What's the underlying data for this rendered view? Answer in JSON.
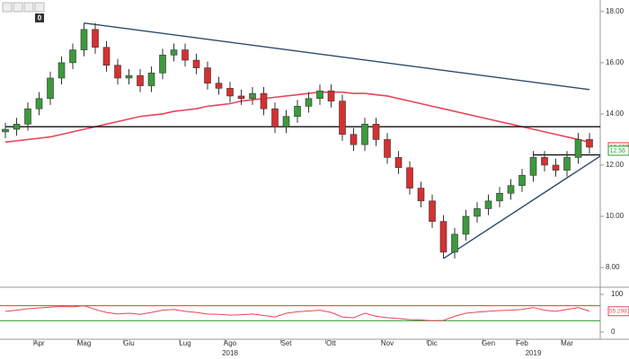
{
  "chart_data": {
    "type": "candlestick",
    "toolbar_count": "0",
    "categories": [
      null,
      null,
      null,
      "Apr",
      null,
      null,
      null,
      "Mag",
      null,
      null,
      null,
      "Giu",
      null,
      null,
      null,
      null,
      "Lug",
      null,
      null,
      null,
      "Ago",
      null,
      null,
      null,
      null,
      "Set",
      null,
      null,
      null,
      "Ott",
      null,
      null,
      null,
      null,
      "Nov",
      null,
      null,
      null,
      "Dic",
      null,
      null,
      null,
      null,
      "Gen",
      null,
      null,
      "Feb",
      null,
      null,
      null,
      "Mar",
      null,
      null
    ],
    "years": [
      null,
      null,
      null,
      null,
      null,
      null,
      null,
      null,
      null,
      null,
      null,
      null,
      null,
      null,
      null,
      null,
      null,
      null,
      null,
      null,
      "2018",
      null,
      null,
      null,
      null,
      null,
      null,
      null,
      null,
      null,
      null,
      null,
      null,
      null,
      null,
      null,
      null,
      null,
      null,
      null,
      null,
      null,
      null,
      null,
      null,
      null,
      null,
      "2019",
      null,
      null,
      null,
      null,
      null
    ],
    "open": [
      13.3,
      13.4,
      13.6,
      14.2,
      14.6,
      15.4,
      16.0,
      16.5,
      17.3,
      16.6,
      15.9,
      15.4,
      15.5,
      15.1,
      15.6,
      16.3,
      16.5,
      16.1,
      15.8,
      15.2,
      15.0,
      14.7,
      14.6,
      14.8,
      14.2,
      13.5,
      13.9,
      14.3,
      14.6,
      14.9,
      14.5,
      13.2,
      12.8,
      13.6,
      13.0,
      12.3,
      11.9,
      11.1,
      10.6,
      9.8,
      8.6,
      9.3,
      10.0,
      10.3,
      10.6,
      10.9,
      11.2,
      11.6,
      12.3,
      12.0,
      11.8,
      12.3,
      13.0
    ],
    "high": [
      13.65,
      13.85,
      14.45,
      14.85,
      15.65,
      16.25,
      16.75,
      17.55,
      17.55,
      16.85,
      16.15,
      15.75,
      15.75,
      15.85,
      16.55,
      16.75,
      16.75,
      16.35,
      16.05,
      15.45,
      15.25,
      14.95,
      15.05,
      15.05,
      14.45,
      14.15,
      14.55,
      14.85,
      15.15,
      15.15,
      14.75,
      13.45,
      13.85,
      13.85,
      13.25,
      12.55,
      12.15,
      11.35,
      10.85,
      10.05,
      9.55,
      10.25,
      10.55,
      10.85,
      11.15,
      11.45,
      11.85,
      12.55,
      12.55,
      12.25,
      12.55,
      13.25,
      13.25
    ],
    "low": [
      13.05,
      13.15,
      13.35,
      13.95,
      14.35,
      15.15,
      15.75,
      16.25,
      16.35,
      15.65,
      15.15,
      15.15,
      14.85,
      14.85,
      15.35,
      16.05,
      15.85,
      15.55,
      14.95,
      14.75,
      14.45,
      14.35,
      14.35,
      13.95,
      13.25,
      13.25,
      13.65,
      14.05,
      14.35,
      14.25,
      12.95,
      12.55,
      12.55,
      12.75,
      12.05,
      11.65,
      10.85,
      10.35,
      9.55,
      8.35,
      8.35,
      9.05,
      9.75,
      10.05,
      10.35,
      10.65,
      10.95,
      11.35,
      11.75,
      11.55,
      11.55,
      12.05,
      12.45
    ],
    "close": [
      13.4,
      13.6,
      14.2,
      14.6,
      15.4,
      16.0,
      16.5,
      17.3,
      16.6,
      15.9,
      15.4,
      15.5,
      15.1,
      15.6,
      16.3,
      16.5,
      16.1,
      15.8,
      15.2,
      15.0,
      14.7,
      14.6,
      14.8,
      14.2,
      13.5,
      13.9,
      14.3,
      14.6,
      14.9,
      14.5,
      13.2,
      12.8,
      13.6,
      13.0,
      12.3,
      11.9,
      11.1,
      10.6,
      9.8,
      8.6,
      9.3,
      10.0,
      10.3,
      10.6,
      10.9,
      11.2,
      11.6,
      12.3,
      12.0,
      11.8,
      12.3,
      13.0,
      12.7
    ],
    "up_color": "#3c9a3c",
    "down_color": "#d63031",
    "moving_average": {
      "color": "#e8455a",
      "values": [
        12.9,
        12.95,
        13.0,
        13.05,
        13.1,
        13.2,
        13.3,
        13.4,
        13.5,
        13.6,
        13.7,
        13.8,
        13.9,
        13.95,
        14.0,
        14.1,
        14.15,
        14.2,
        14.3,
        14.35,
        14.4,
        14.5,
        14.55,
        14.6,
        14.65,
        14.7,
        14.75,
        14.8,
        14.85,
        14.85,
        14.85,
        14.8,
        14.8,
        14.75,
        14.7,
        14.6,
        14.5,
        14.4,
        14.3,
        14.2,
        14.1,
        14.0,
        13.9,
        13.8,
        13.7,
        13.6,
        13.5,
        13.4,
        13.3,
        13.2,
        13.1,
        13.0,
        12.9
      ]
    },
    "lines": [
      {
        "color": "#2c4a6b",
        "x": [
          7,
          52
        ],
        "y": [
          17.55,
          14.95
        ]
      },
      {
        "color": "#111111",
        "x": [
          0,
          53
        ],
        "y": [
          13.5,
          13.5
        ]
      },
      {
        "color": "#2c4a6b",
        "x": [
          39,
          53
        ],
        "y": [
          8.35,
          12.35
        ]
      },
      {
        "color": "#111111",
        "x": [
          47,
          53
        ],
        "y": [
          12.4,
          12.4
        ]
      }
    ],
    "ylim": [
      7.3,
      18.45
    ],
    "yticks": [
      {
        "value": 8,
        "label": "8.00"
      },
      {
        "value": 10,
        "label": "10.00"
      },
      {
        "value": 12,
        "label": "12.00"
      },
      {
        "value": 14,
        "label": "14.00"
      },
      {
        "value": 16,
        "label": "16.00"
      },
      {
        "value": 18,
        "label": "18.00"
      }
    ],
    "price_labels": [
      {
        "value": 12.699,
        "label": "12.699",
        "color": "#e53935"
      },
      {
        "value": 12.56,
        "label": "12.56",
        "color": "#2e9e2e"
      }
    ],
    "rsi": {
      "color": "#e8455a",
      "values": [
        55,
        58,
        62,
        64,
        66,
        68,
        67,
        70,
        60,
        52,
        48,
        50,
        47,
        52,
        58,
        60,
        55,
        52,
        48,
        47,
        45,
        46,
        48,
        44,
        40,
        50,
        54,
        56,
        58,
        52,
        40,
        38,
        50,
        42,
        38,
        36,
        33,
        32,
        30,
        31,
        42,
        50,
        53,
        55,
        57,
        58,
        60,
        65,
        58,
        55,
        60,
        65,
        55.2981
      ],
      "last_label": "55.2981",
      "ylim": [
        0,
        100
      ],
      "yticks": [
        0,
        100
      ],
      "levels": [
        {
          "value": 70,
          "color": "#e53935"
        },
        {
          "value": 30,
          "color": "#2e9e2e"
        }
      ]
    }
  }
}
